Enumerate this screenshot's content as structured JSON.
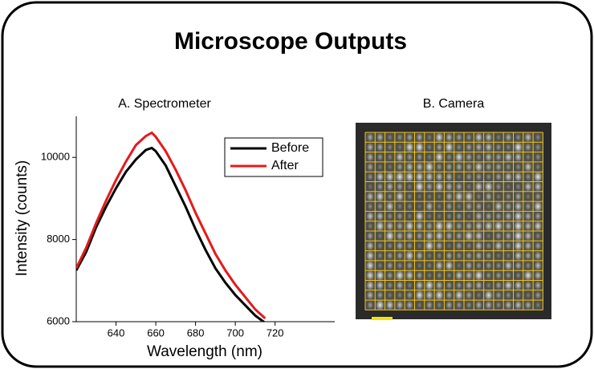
{
  "title": "Microscope Outputs",
  "chart_data": {
    "type": "line",
    "title": "A. Spectrometer",
    "x_label": "Wavelength (nm)",
    "y_label": "Intensity (counts)",
    "x": [
      620,
      625,
      630,
      635,
      640,
      645,
      650,
      655,
      658,
      660,
      665,
      670,
      675,
      680,
      685,
      690,
      695,
      700,
      705,
      710,
      715
    ],
    "series": [
      {
        "name": "Before",
        "color": "#000000",
        "values": [
          7250,
          7700,
          8300,
          8800,
          9250,
          9650,
          9950,
          10180,
          10230,
          10150,
          9800,
          9300,
          8800,
          8250,
          7750,
          7300,
          6950,
          6650,
          6400,
          6150,
          5970
        ]
      },
      {
        "name": "After",
        "color": "#e41a1c",
        "values": [
          7300,
          7800,
          8400,
          8950,
          9450,
          9900,
          10300,
          10520,
          10600,
          10500,
          10150,
          9700,
          9200,
          8650,
          8150,
          7650,
          7250,
          6900,
          6600,
          6300,
          6080
        ]
      }
    ],
    "xlim": [
      620,
      750
    ],
    "ylim": [
      6000,
      11000
    ],
    "xticks": [
      640,
      660,
      680,
      700,
      720
    ],
    "yticks": [
      6000,
      8000,
      10000
    ],
    "legend": "upper right"
  },
  "camera": {
    "title": "B. Camera"
  }
}
